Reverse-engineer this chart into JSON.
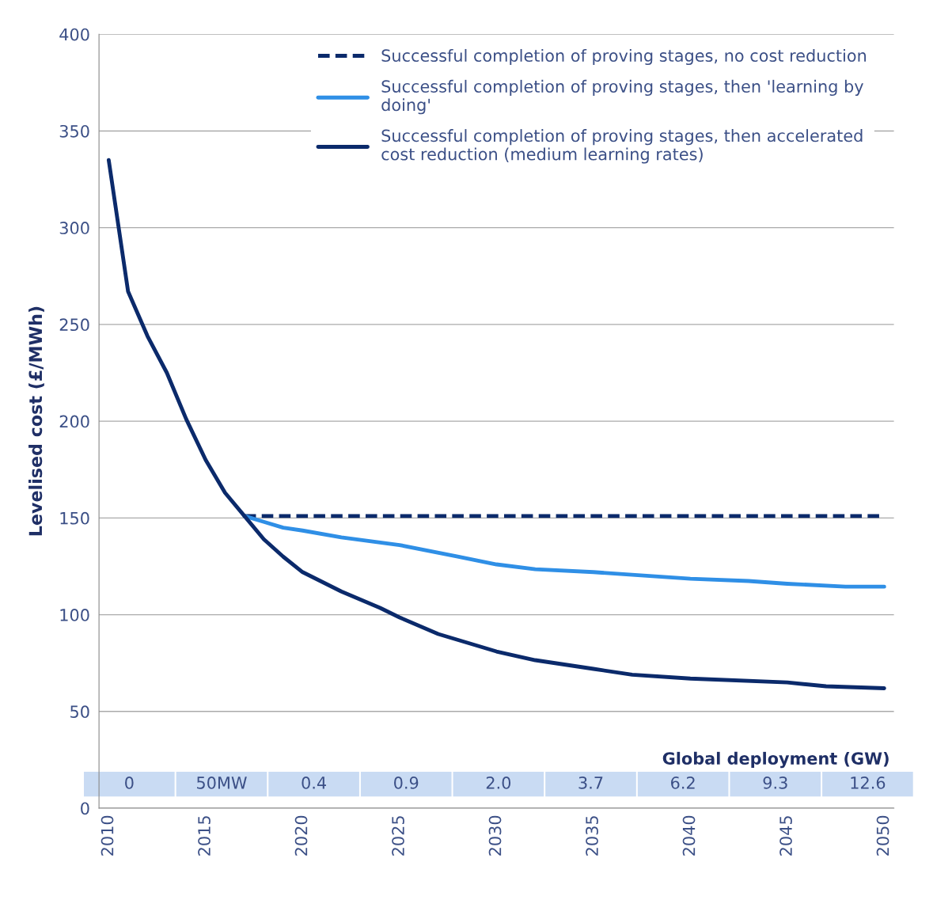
{
  "chart_data": {
    "type": "line",
    "ylabel": "Levelised cost (£/MWh)",
    "xlim": [
      2009.5,
      2050.5
    ],
    "xticks": [
      2010,
      2015,
      2020,
      2025,
      2030,
      2035,
      2040,
      2045,
      2050
    ],
    "ylim": [
      0,
      400
    ],
    "yticks": [
      0,
      50,
      100,
      150,
      200,
      250,
      300,
      350,
      400
    ],
    "grid": "y",
    "legend": "top right",
    "line_style": "solid",
    "marker": "none",
    "series": [
      {
        "name": "Successful completion of proving stages, no cost reduction",
        "color": "#0b2a6b",
        "line_style": "dashed",
        "x": [
          2017,
          2050
        ],
        "values": [
          151,
          151
        ]
      },
      {
        "name": "Successful completion of proving stages, then 'learning by doing'",
        "color": "#2f8fe6",
        "x": [
          2017,
          2018,
          2019,
          2020,
          2022,
          2025,
          2028,
          2030,
          2032,
          2035,
          2040,
          2043,
          2045,
          2048,
          2050
        ],
        "values": [
          151,
          148,
          145,
          143.5,
          140,
          136,
          130,
          126,
          123.5,
          122,
          118.6,
          117.4,
          116,
          114.5,
          114.5
        ]
      },
      {
        "name": "Successful completion of proving stages, then accelerated cost reduction (medium learning rates)",
        "color": "#0b2a6b",
        "x": [
          2010,
          2011,
          2012,
          2013,
          2014,
          2015,
          2016,
          2017,
          2018,
          2019,
          2020,
          2022,
          2024,
          2025,
          2027,
          2030,
          2032,
          2035,
          2037,
          2040,
          2045,
          2047,
          2050
        ],
        "values": [
          335,
          267,
          244,
          225,
          201,
          180,
          163,
          151,
          139,
          130,
          122,
          112,
          103.5,
          98.6,
          90,
          81,
          76.5,
          72,
          69,
          67,
          65,
          63,
          62
        ]
      }
    ],
    "annotations": [
      "Global deployment (GW)",
      "0",
      "50MW",
      "0.4",
      "0.9",
      "2.0",
      "3.7",
      "6.2",
      "9.3",
      "12.6"
    ]
  }
}
